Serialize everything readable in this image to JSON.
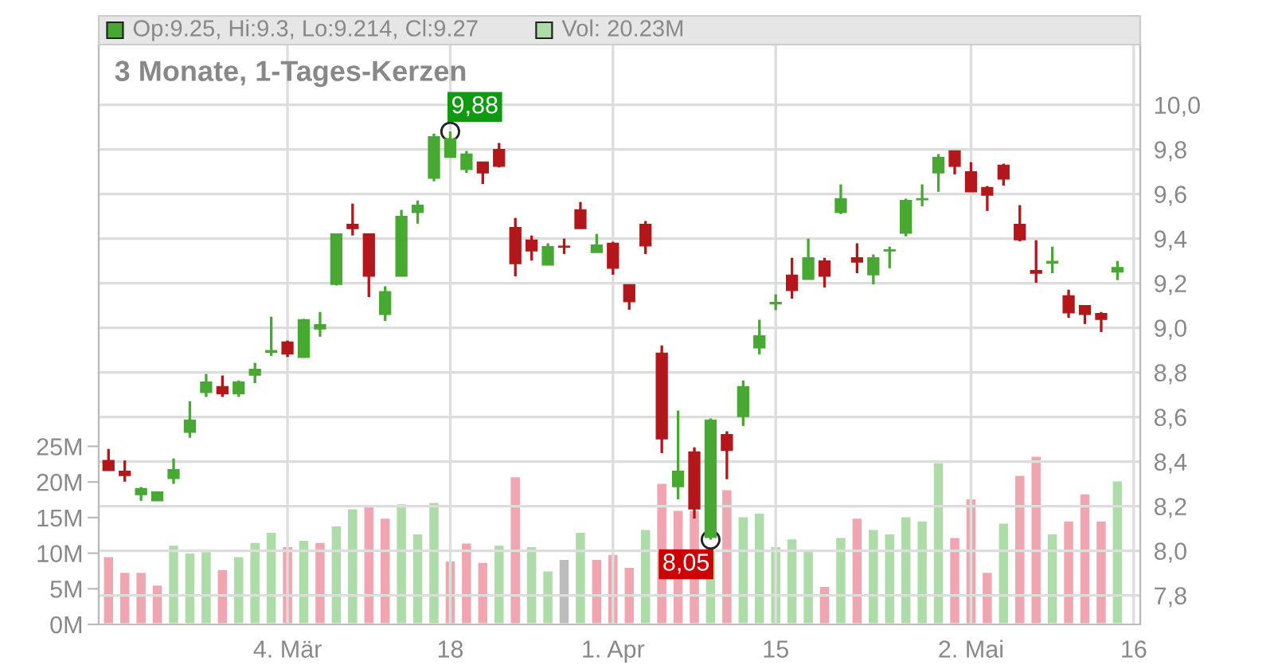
{
  "chart_data": {
    "type": "candlestick",
    "title": "3 Monate, 1-Tages-Kerzen",
    "annotations": [
      "Op:9.25, Hi:9.3, Lo:9.214, Cl:9.27",
      "Vol: 20.23M",
      {
        "text": "9,88",
        "x": "18",
        "y": 9.88
      },
      {
        "text": "8,05",
        "y": 8.05
      }
    ],
    "categories": [
      null,
      null,
      null,
      null,
      null,
      null,
      null,
      null,
      null,
      null,
      null,
      "4. Mär",
      null,
      null,
      null,
      null,
      null,
      null,
      null,
      null,
      null,
      "18",
      null,
      null,
      null,
      null,
      null,
      null,
      null,
      null,
      null,
      "1. Apr",
      null,
      null,
      null,
      null,
      null,
      null,
      null,
      null,
      null,
      "15",
      null,
      null,
      null,
      null,
      null,
      null,
      null,
      null,
      null,
      null,
      null,
      "2. Mai",
      null,
      null,
      null,
      null,
      null,
      null,
      null,
      null,
      null,
      "16"
    ],
    "ohlc": [
      [
        8.405,
        8.457,
        8.36,
        8.36
      ],
      [
        8.357,
        8.405,
        8.31,
        8.338
      ],
      [
        8.252,
        8.286,
        8.224,
        8.279
      ],
      [
        8.224,
        8.264,
        8.224,
        8.264
      ],
      [
        8.324,
        8.414,
        8.3,
        8.364
      ],
      [
        8.531,
        8.671,
        8.507,
        8.586
      ],
      [
        8.71,
        8.793,
        8.69,
        8.757
      ],
      [
        8.736,
        8.786,
        8.69,
        8.705
      ],
      [
        8.705,
        8.764,
        8.69,
        8.757
      ],
      [
        8.788,
        8.843,
        8.752,
        8.814
      ],
      [
        8.89,
        9.05,
        8.874,
        8.898
      ],
      [
        8.936,
        8.943,
        8.869,
        8.883
      ],
      [
        8.867,
        9.04,
        8.867,
        9.036
      ],
      [
        8.995,
        9.071,
        8.96,
        9.014
      ],
      [
        9.195,
        9.421,
        9.19,
        9.421
      ],
      [
        9.464,
        9.557,
        9.414,
        9.445
      ],
      [
        9.421,
        9.421,
        9.138,
        9.231
      ],
      [
        9.06,
        9.186,
        9.031,
        9.162
      ],
      [
        9.231,
        9.529,
        9.231,
        9.5
      ],
      [
        9.517,
        9.571,
        9.467,
        9.55
      ],
      [
        9.671,
        9.871,
        9.657,
        9.857
      ],
      [
        9.764,
        9.88,
        9.764,
        9.848
      ],
      [
        9.71,
        9.793,
        9.695,
        9.779
      ],
      [
        9.743,
        9.743,
        9.645,
        9.695
      ],
      [
        9.8,
        9.829,
        9.719,
        9.724
      ],
      [
        9.45,
        9.493,
        9.231,
        9.288
      ],
      [
        9.393,
        9.414,
        9.302,
        9.345
      ],
      [
        9.281,
        9.379,
        9.281,
        9.364
      ],
      [
        9.364,
        9.4,
        9.331,
        9.362
      ],
      [
        9.529,
        9.564,
        9.445,
        9.445
      ],
      [
        9.338,
        9.421,
        9.338,
        9.371
      ],
      [
        9.379,
        9.386,
        9.238,
        9.267
      ],
      [
        9.193,
        9.193,
        9.081,
        9.117
      ],
      [
        9.464,
        9.479,
        9.331,
        9.367
      ],
      [
        8.886,
        8.921,
        8.438,
        8.502
      ],
      [
        8.288,
        8.629,
        8.231,
        8.357
      ],
      [
        8.443,
        8.464,
        8.145,
        8.188
      ],
      [
        8.06,
        8.593,
        8.05,
        8.586
      ],
      [
        8.521,
        8.536,
        8.321,
        8.45
      ],
      [
        8.602,
        8.764,
        8.56,
        8.736
      ],
      [
        8.91,
        9.036,
        8.881,
        8.964
      ],
      [
        9.107,
        9.15,
        9.079,
        9.114
      ],
      [
        9.236,
        9.314,
        9.131,
        9.167
      ],
      [
        9.217,
        9.4,
        9.217,
        9.314
      ],
      [
        9.3,
        9.314,
        9.181,
        9.231
      ],
      [
        9.517,
        9.643,
        9.51,
        9.579
      ],
      [
        9.314,
        9.379,
        9.245,
        9.295
      ],
      [
        9.238,
        9.329,
        9.195,
        9.314
      ],
      [
        9.345,
        9.364,
        9.267,
        9.35
      ],
      [
        9.424,
        9.579,
        9.41,
        9.571
      ],
      [
        9.574,
        9.643,
        9.545,
        9.579
      ],
      [
        9.695,
        9.779,
        9.61,
        9.764
      ],
      [
        9.793,
        9.793,
        9.688,
        9.724
      ],
      [
        9.7,
        9.743,
        9.61,
        9.61
      ],
      [
        9.629,
        9.636,
        9.524,
        9.595
      ],
      [
        9.729,
        9.736,
        9.638,
        9.667
      ],
      [
        9.464,
        9.55,
        9.388,
        9.395
      ],
      [
        9.257,
        9.393,
        9.202,
        9.245
      ],
      [
        9.29,
        9.364,
        9.245,
        9.298
      ],
      [
        9.143,
        9.171,
        9.045,
        9.067
      ],
      [
        9.1,
        9.1,
        9.017,
        9.06
      ],
      [
        9.064,
        9.071,
        8.981,
        9.038
      ],
      [
        9.25,
        9.3,
        9.214,
        9.27
      ],
      null
    ],
    "colors": [
      "#b3171b",
      "#b3171b",
      "#47a832",
      "#47a832",
      "#47a832",
      "#47a832",
      "#47a832",
      "#b3171b",
      "#47a832",
      "#47a832",
      "#47a832",
      "#b3171b",
      "#47a832",
      "#47a832",
      "#47a832",
      "#b3171b",
      "#b3171b",
      "#47a832",
      "#47a832",
      "#47a832",
      "#47a832",
      "#47a832",
      "#47a832",
      "#b3171b",
      "#b3171b",
      "#b3171b",
      "#b3171b",
      "#47a832",
      "#b3171b",
      "#b3171b",
      "#47a832",
      "#b3171b",
      "#b3171b",
      "#b3171b",
      "#b3171b",
      "#47a832",
      "#b3171b",
      "#47a832",
      "#b3171b",
      "#47a832",
      "#47a832",
      "#47a832",
      "#b3171b",
      "#47a832",
      "#b3171b",
      "#47a832",
      "#b3171b",
      "#47a832",
      "#47a832",
      "#47a832",
      "#47a832",
      "#47a832",
      "#b3171b",
      "#b3171b",
      "#b3171b",
      "#b3171b",
      "#b3171b",
      "#b3171b",
      "#47a832",
      "#b3171b",
      "#b3171b",
      "#b3171b",
      "#47a832",
      null
    ],
    "series": [
      {
        "type": "bar",
        "axis": "y2",
        "values": [
          9.6,
          7.4,
          7.4,
          5.6,
          11.2,
          10.1,
          10.3,
          7.8,
          9.6,
          11.6,
          13.0,
          11.0,
          11.9,
          11.6,
          13.9,
          16.3,
          16.8,
          15.0,
          17.0,
          12.8,
          17.2,
          9.0,
          11.5,
          8.8,
          11.2,
          20.8,
          11.0,
          7.6,
          9.2,
          13.0,
          9.2,
          9.9,
          8.1,
          13.4,
          19.9,
          16.1,
          16.1,
          10.9,
          19.0,
          15.2,
          15.7,
          11.0,
          12.1,
          10.5,
          5.4,
          12.3,
          15.0,
          13.4,
          12.8,
          15.2,
          14.6,
          22.8,
          12.3,
          17.7,
          7.4,
          14.3,
          21.0,
          23.7,
          12.8,
          14.6,
          18.4,
          14.6,
          20.23,
          null
        ],
        "colors": [
          "#efa6b0",
          "#efa6b0",
          "#efa6b0",
          "#efa6b0",
          "#aedca9",
          "#aedca9",
          "#aedca9",
          "#efa6b0",
          "#aedca9",
          "#aedca9",
          "#aedca9",
          "#efa6b0",
          "#aedca9",
          "#efa6b0",
          "#aedca9",
          "#aedca9",
          "#efa6b0",
          "#efa6b0",
          "#aedca9",
          "#aedca9",
          "#aedca9",
          "#efa6b0",
          "#efa6b0",
          "#efa6b0",
          "#aedca9",
          "#efa6b0",
          "#aedca9",
          "#aedca9",
          "#bcbcbc",
          "#aedca9",
          "#efa6b0",
          "#efa6b0",
          "#efa6b0",
          "#aedca9",
          "#efa6b0",
          "#efa6b0",
          "#efa6b0",
          "#aedca9",
          "#efa6b0",
          "#aedca9",
          "#aedca9",
          "#aedca9",
          "#aedca9",
          "#aedca9",
          "#efa6b0",
          "#aedca9",
          "#efa6b0",
          "#aedca9",
          "#aedca9",
          "#aedca9",
          "#aedca9",
          "#aedca9",
          "#efa6b0",
          "#efa6b0",
          "#efa6b0",
          "#aedca9",
          "#efa6b0",
          "#efa6b0",
          "#aedca9",
          "#efa6b0",
          "#efa6b0",
          "#efa6b0",
          "#aedca9",
          null
        ]
      }
    ],
    "ylim": [
      7.67,
      10.27
    ],
    "yticks": [
      {
        "value": 7.8,
        "label": "7,8"
      },
      {
        "value": 8.0,
        "label": "8,0"
      },
      {
        "value": 8.2,
        "label": "8,2"
      },
      {
        "value": 8.4,
        "label": "8,4"
      },
      {
        "value": 8.6,
        "label": "8,6"
      },
      {
        "value": 8.8,
        "label": "8,8"
      },
      {
        "value": 9.0,
        "label": "9,0"
      },
      {
        "value": 9.2,
        "label": "9,2"
      },
      {
        "value": 9.4,
        "label": "9,4"
      },
      {
        "value": 9.6,
        "label": "9,6"
      },
      {
        "value": 9.8,
        "label": "9,8"
      },
      {
        "value": 10.0,
        "label": "10,0"
      }
    ],
    "y2lim": [
      0,
      81.4
    ],
    "y2ticks": [
      {
        "value": 0,
        "label": "0M"
      },
      {
        "value": 5,
        "label": "5M"
      },
      {
        "value": 10,
        "label": "10M"
      },
      {
        "value": 15,
        "label": "15M"
      },
      {
        "value": 20,
        "label": "20M"
      },
      {
        "value": 25,
        "label": "25M"
      }
    ],
    "grid": true
  }
}
